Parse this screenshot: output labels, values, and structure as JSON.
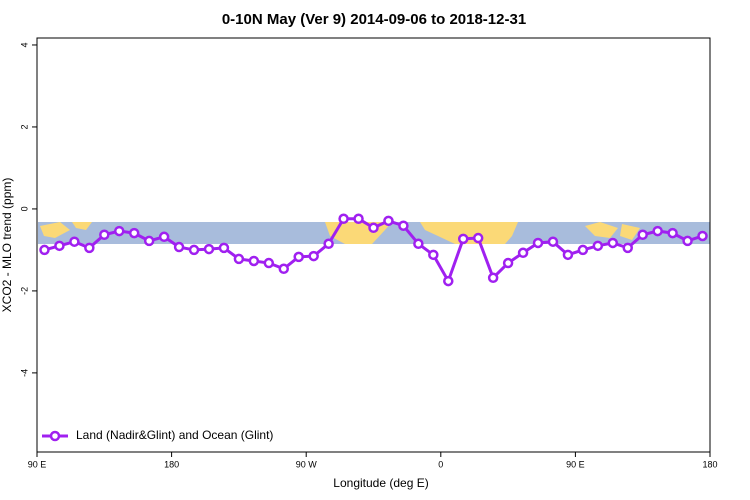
{
  "chart_data": {
    "type": "line",
    "title": "0-10N May (Ver 9)   2014-09-06 to 2018-12-31",
    "x_label": "Longitude (deg E)",
    "y_label": "XCO2 - MLO trend (ppm)",
    "xlim": [
      90,
      540
    ],
    "xticks": [
      {
        "value": 90,
        "label": "90 E"
      },
      {
        "value": 180,
        "label": "180"
      },
      {
        "value": 270,
        "label": "90 W"
      },
      {
        "value": 360,
        "label": "0"
      },
      {
        "value": 450,
        "label": "90 E"
      },
      {
        "value": 540,
        "label": "180"
      }
    ],
    "ylim": [
      -5.93,
      4.17
    ],
    "yticks": [
      4,
      2,
      0,
      -2,
      -4
    ],
    "legend": "bottom-left",
    "series": [
      {
        "name": "Land (Nadir&Glint) and Ocean (Glint)",
        "color": "#a020f0",
        "x": [
          95,
          105,
          115,
          125,
          135,
          145,
          155,
          165,
          175,
          185,
          195,
          205,
          215,
          225,
          235,
          245,
          255,
          265,
          275,
          285,
          295,
          305,
          315,
          325,
          335,
          345,
          355,
          365,
          375,
          385,
          395,
          405,
          415,
          425,
          435,
          445,
          455,
          465,
          475,
          485,
          495,
          505,
          515,
          525,
          535
        ],
        "values": [
          -1.0,
          -0.9,
          -0.8,
          -0.95,
          -0.63,
          -0.54,
          -0.59,
          -0.78,
          -0.68,
          -0.93,
          -1.0,
          -0.98,
          -0.95,
          -1.22,
          -1.27,
          -1.32,
          -1.46,
          -1.17,
          -1.15,
          -0.85,
          -0.24,
          -0.24,
          -0.46,
          -0.29,
          -0.41,
          -0.85,
          -1.12,
          -1.76,
          -0.73,
          -0.71,
          -1.68,
          -1.32,
          -1.07,
          -0.83,
          -0.8,
          -1.12,
          -1.0,
          -0.9,
          -0.83,
          -0.95,
          -0.63,
          -0.54,
          -0.59,
          -0.78,
          -0.66
        ]
      }
    ]
  }
}
